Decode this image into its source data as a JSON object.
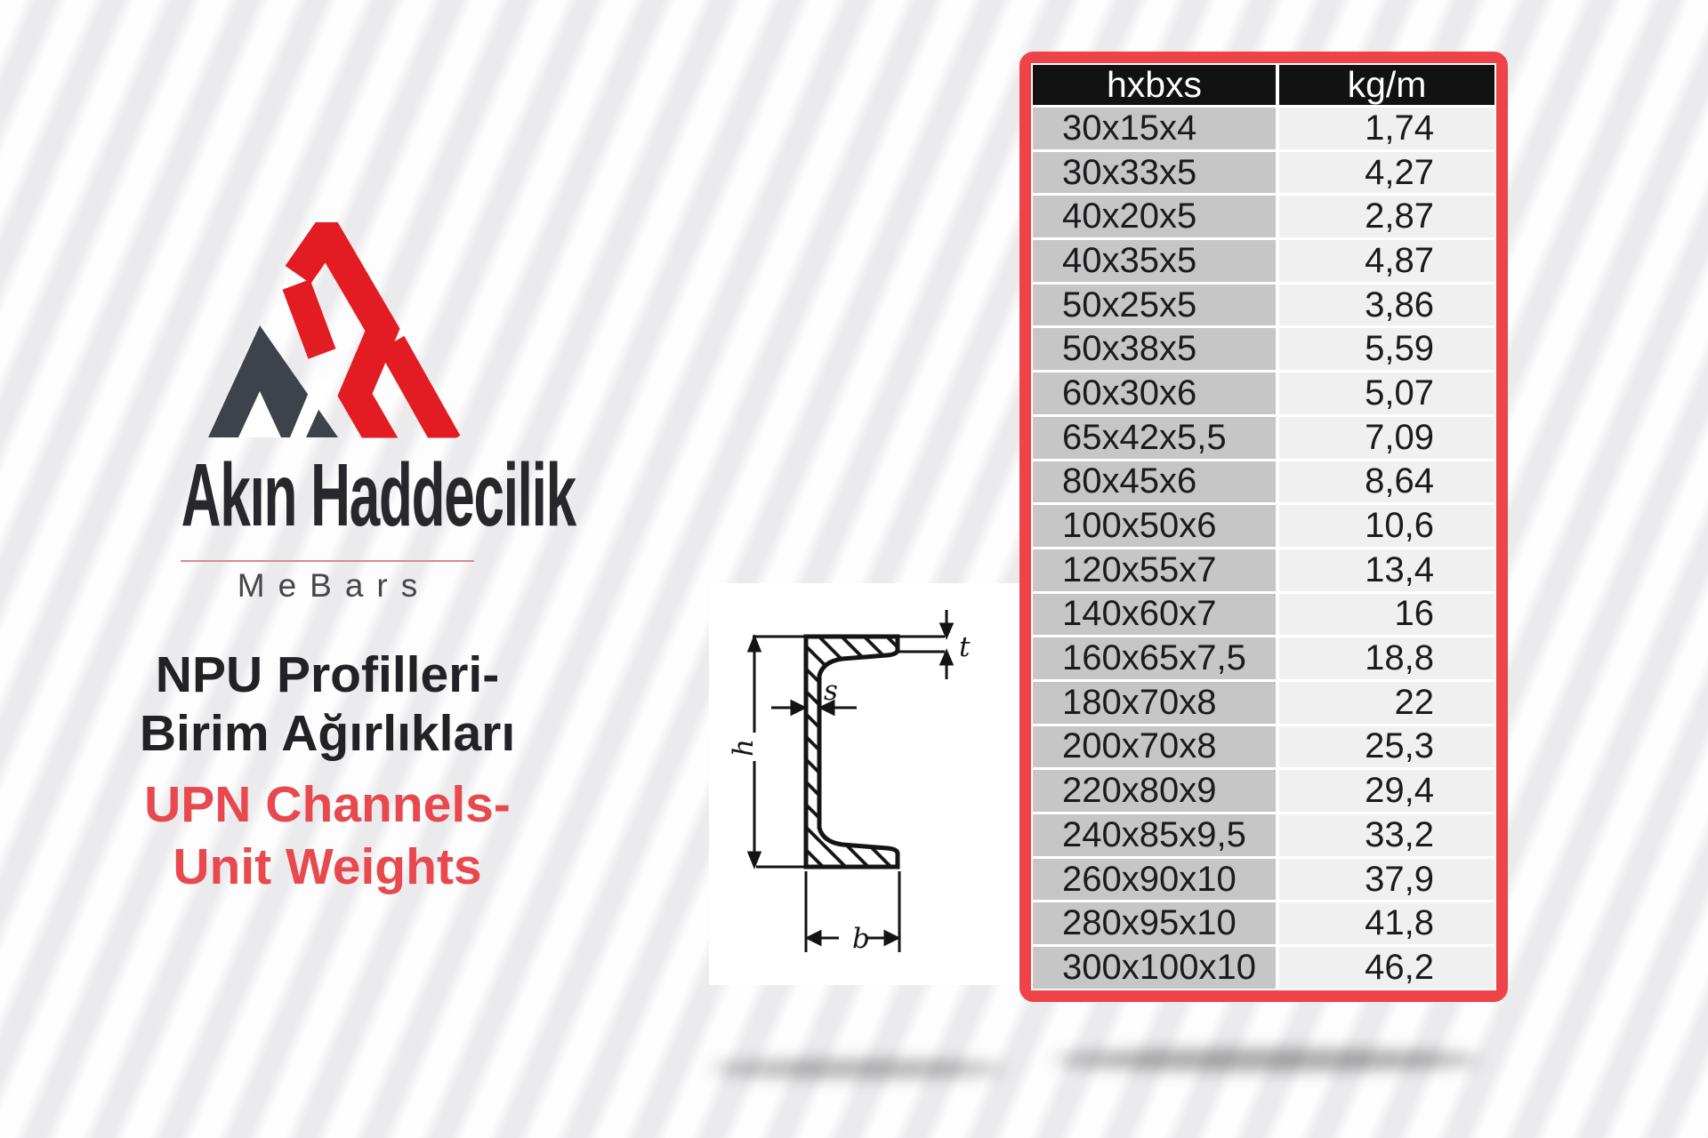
{
  "brand": {
    "name": "Akın Haddecilik",
    "subtitle": "MeBars"
  },
  "heading": {
    "line1_tr": "NPU Profilleri-",
    "line2_tr": "Birim Ağırlıkları",
    "line3_en": "UPN Channels-",
    "line4_en": "Unit Weights"
  },
  "diagram": {
    "labels": {
      "h": "h",
      "s": "s",
      "t": "t",
      "b": "b"
    }
  },
  "table": {
    "headers": [
      "hxbxs",
      "kg/m"
    ],
    "rows": [
      [
        "30x15x4",
        "1,74"
      ],
      [
        "30x33x5",
        "4,27"
      ],
      [
        "40x20x5",
        "2,87"
      ],
      [
        "40x35x5",
        "4,87"
      ],
      [
        "50x25x5",
        "3,86"
      ],
      [
        "50x38x5",
        "5,59"
      ],
      [
        "60x30x6",
        "5,07"
      ],
      [
        "65x42x5,5",
        "7,09"
      ],
      [
        "80x45x6",
        "8,64"
      ],
      [
        "100x50x6",
        "10,6"
      ],
      [
        "120x55x7",
        "13,4"
      ],
      [
        "140x60x7",
        "16"
      ],
      [
        "160x65x7,5",
        "18,8"
      ],
      [
        "180x70x8",
        "22"
      ],
      [
        "200x70x8",
        "25,3"
      ],
      [
        "220x80x9",
        "29,4"
      ],
      [
        "240x85x9,5",
        "33,2"
      ],
      [
        "260x90x10",
        "37,9"
      ],
      [
        "280x95x10",
        "41,8"
      ],
      [
        "300x100x10",
        "46,2"
      ]
    ]
  },
  "colors": {
    "logo_red": "#e31b22",
    "logo_dark": "#3e434b",
    "frame_red": "#ee4348",
    "heading_red": "#e8494e",
    "heading_dark": "#212126",
    "header_bg": "#121212",
    "cell_gray": "#c6c6c7",
    "cell_light": "#f0f0f1"
  }
}
